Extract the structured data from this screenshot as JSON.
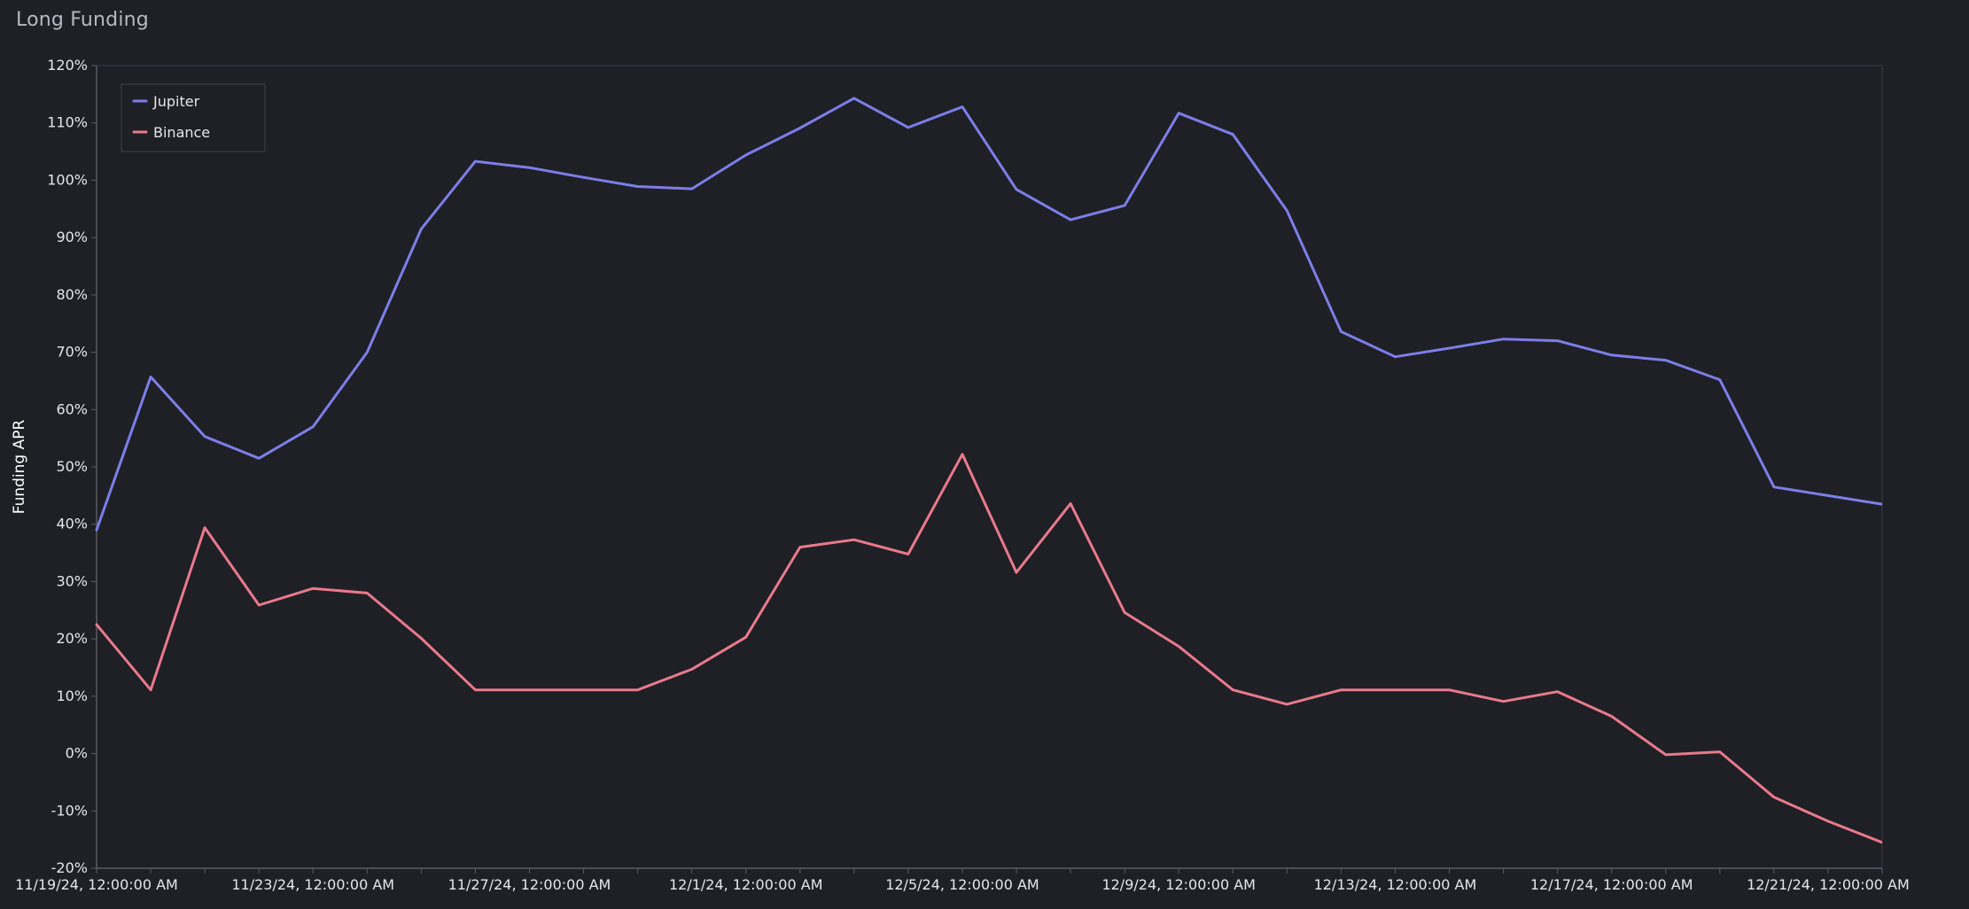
{
  "page": {
    "title": "Long Funding"
  },
  "chart_data": {
    "type": "line",
    "title": "Long Funding",
    "ylabel": "Funding APR",
    "xlabel": "",
    "x_categories": [
      "11/19/24, 12:00:00 AM",
      "11/20/24, 12:00:00 AM",
      "11/21/24, 12:00:00 AM",
      "11/22/24, 12:00:00 AM",
      "11/23/24, 12:00:00 AM",
      "11/24/24, 12:00:00 AM",
      "11/25/24, 12:00:00 AM",
      "11/26/24, 12:00:00 AM",
      "11/27/24, 12:00:00 AM",
      "11/28/24, 12:00:00 AM",
      "11/29/24, 12:00:00 AM",
      "11/30/24, 12:00:00 AM",
      "12/1/24, 12:00:00 AM",
      "12/2/24, 12:00:00 AM",
      "12/3/24, 12:00:00 AM",
      "12/4/24, 12:00:00 AM",
      "12/5/24, 12:00:00 AM",
      "12/6/24, 12:00:00 AM",
      "12/7/24, 12:00:00 AM",
      "12/8/24, 12:00:00 AM",
      "12/9/24, 12:00:00 AM",
      "12/10/24, 12:00:00 AM",
      "12/11/24, 12:00:00 AM",
      "12/12/24, 12:00:00 AM",
      "12/13/24, 12:00:00 AM",
      "12/14/24, 12:00:00 AM",
      "12/15/24, 12:00:00 AM",
      "12/16/24, 12:00:00 AM",
      "12/17/24, 12:00:00 AM",
      "12/18/24, 12:00:00 AM",
      "12/19/24, 12:00:00 AM",
      "12/20/24, 12:00:00 AM",
      "12/21/24, 12:00:00 AM",
      "12/22/24, 12:00:00 AM"
    ],
    "x_tick_labels": [
      "11/19/24, 12:00:00 AM",
      "11/23/24, 12:00:00 AM",
      "11/27/24, 12:00:00 AM",
      "12/1/24, 12:00:00 AM",
      "12/5/24, 12:00:00 AM",
      "12/9/24, 12:00:00 AM",
      "12/13/24, 12:00:00 AM",
      "12/17/24, 12:00:00 AM",
      "12/21/24, 12:00:00 AM"
    ],
    "x_label_every": 4,
    "y_ticks": [
      -20,
      -10,
      0,
      10,
      20,
      30,
      40,
      50,
      60,
      70,
      80,
      90,
      100,
      110,
      120
    ],
    "y_tick_labels": [
      "-20%",
      "-10%",
      "0%",
      "10%",
      "20%",
      "30%",
      "40%",
      "50%",
      "60%",
      "70%",
      "80%",
      "90%",
      "100%",
      "110%",
      "120%"
    ],
    "ylim": [
      -20,
      120
    ],
    "grid": false,
    "legend_position": "top-left",
    "series": [
      {
        "name": "Jupiter",
        "color": "#7b7fe8",
        "values": [
          39,
          65.7,
          55.3,
          51.5,
          57,
          70,
          91.5,
          103.3,
          102.2,
          100.5,
          98.9,
          98.5,
          104.4,
          109.1,
          114.3,
          109.2,
          112.8,
          98.4,
          93.1,
          95.6,
          111.7,
          108,
          94.7,
          73.6,
          69.2,
          70.7,
          72.3,
          72,
          69.5,
          68.6,
          65.2,
          46.5,
          45,
          43.5
        ]
      },
      {
        "name": "Binance",
        "color": "#e97a8b",
        "values": [
          22.5,
          11.1,
          39.4,
          25.9,
          28.8,
          28,
          20.1,
          11.1,
          11.1,
          11.1,
          11.1,
          14.7,
          20.3,
          36,
          37.3,
          34.8,
          52.2,
          31.6,
          43.6,
          24.6,
          18.7,
          11.1,
          8.6,
          11.1,
          11.1,
          11.1,
          9.1,
          10.8,
          6.5,
          -0.2,
          0.3,
          -7.6,
          -11.8,
          -15.5
        ]
      }
    ]
  }
}
